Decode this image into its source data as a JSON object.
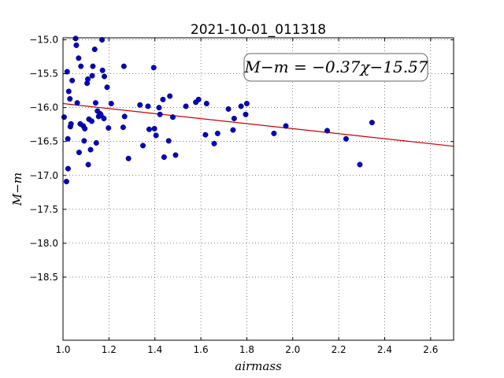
{
  "chart_data": {
    "type": "scatter",
    "title": "2021-10-01_011318",
    "xlabel": "airmass",
    "ylabel": "M−m",
    "xlim": [
      1.0,
      2.7
    ],
    "ylim": [
      -14.97,
      -19.43
    ],
    "y_inverted": true,
    "grid": true,
    "x_ticks": [
      1.0,
      1.2,
      1.4,
      1.6,
      1.8,
      2.0,
      2.2,
      2.4,
      2.6
    ],
    "x_tick_labels": [
      "1.0",
      "1.2",
      "1.4",
      "1.6",
      "1.8",
      "2.0",
      "2.2",
      "2.4",
      "2.6"
    ],
    "y_ticks": [
      -15.0,
      -15.5,
      -16.0,
      -16.5,
      -17.0,
      -17.5,
      -18.0,
      -18.5
    ],
    "y_tick_labels": [
      "−15.0",
      "−15.5",
      "−16.0",
      "−16.5",
      "−17.0",
      "−17.5",
      "−18.0",
      "−18.5"
    ],
    "annotation": "M−m = −0.37χ−15.57",
    "fit_line": {
      "slope": -0.37,
      "intercept": -15.57,
      "color": "#cc0000"
    },
    "point_color": "#0000cc",
    "points": [
      [
        1.005,
        -16.14
      ],
      [
        1.015,
        -17.09
      ],
      [
        1.018,
        -15.47
      ],
      [
        1.021,
        -16.46
      ],
      [
        1.022,
        -16.9
      ],
      [
        1.025,
        -15.76
      ],
      [
        1.03,
        -15.87
      ],
      [
        1.032,
        -16.28
      ],
      [
        1.035,
        -16.24
      ],
      [
        1.04,
        -15.6
      ],
      [
        1.055,
        -14.98
      ],
      [
        1.058,
        -15.08
      ],
      [
        1.062,
        -15.93
      ],
      [
        1.068,
        -15.27
      ],
      [
        1.07,
        -16.66
      ],
      [
        1.075,
        -16.24
      ],
      [
        1.078,
        -15.39
      ],
      [
        1.088,
        -16.27
      ],
      [
        1.092,
        -16.49
      ],
      [
        1.095,
        -16.31
      ],
      [
        1.105,
        -15.64
      ],
      [
        1.108,
        -15.58
      ],
      [
        1.11,
        -16.84
      ],
      [
        1.113,
        -16.17
      ],
      [
        1.12,
        -16.62
      ],
      [
        1.125,
        -16.2
      ],
      [
        1.127,
        -15.53
      ],
      [
        1.13,
        -15.39
      ],
      [
        1.138,
        -15.14
      ],
      [
        1.142,
        -15.93
      ],
      [
        1.145,
        -16.52
      ],
      [
        1.15,
        -16.05
      ],
      [
        1.155,
        -16.13
      ],
      [
        1.162,
        -16.09
      ],
      [
        1.165,
        -16.11
      ],
      [
        1.17,
        -15.0
      ],
      [
        1.172,
        -15.45
      ],
      [
        1.178,
        -16.16
      ],
      [
        1.18,
        -15.54
      ],
      [
        1.192,
        -15.7
      ],
      [
        1.198,
        -16.3
      ],
      [
        1.21,
        -15.94
      ],
      [
        1.262,
        -16.29
      ],
      [
        1.265,
        -15.39
      ],
      [
        1.268,
        -16.13
      ],
      [
        1.285,
        -16.75
      ],
      [
        1.335,
        -15.96
      ],
      [
        1.348,
        -16.56
      ],
      [
        1.37,
        -15.98
      ],
      [
        1.375,
        -16.32
      ],
      [
        1.395,
        -15.41
      ],
      [
        1.398,
        -16.31
      ],
      [
        1.405,
        -16.41
      ],
      [
        1.418,
        -16.0
      ],
      [
        1.422,
        -16.1
      ],
      [
        1.435,
        -15.88
      ],
      [
        1.44,
        -16.73
      ],
      [
        1.46,
        -16.49
      ],
      [
        1.465,
        -15.83
      ],
      [
        1.478,
        -16.14
      ],
      [
        1.49,
        -16.7
      ],
      [
        1.535,
        -15.98
      ],
      [
        1.578,
        -15.92
      ],
      [
        1.59,
        -15.88
      ],
      [
        1.62,
        -16.4
      ],
      [
        1.625,
        -15.94
      ],
      [
        1.658,
        -16.53
      ],
      [
        1.673,
        -16.38
      ],
      [
        1.72,
        -16.02
      ],
      [
        1.74,
        -16.33
      ],
      [
        1.745,
        -16.16
      ],
      [
        1.775,
        -15.98
      ],
      [
        1.795,
        -16.1
      ],
      [
        1.8,
        -15.94
      ],
      [
        1.918,
        -16.38
      ],
      [
        1.97,
        -16.27
      ],
      [
        2.15,
        -16.34
      ],
      [
        2.232,
        -16.46
      ],
      [
        2.292,
        -16.84
      ],
      [
        2.345,
        -16.22
      ]
    ]
  }
}
